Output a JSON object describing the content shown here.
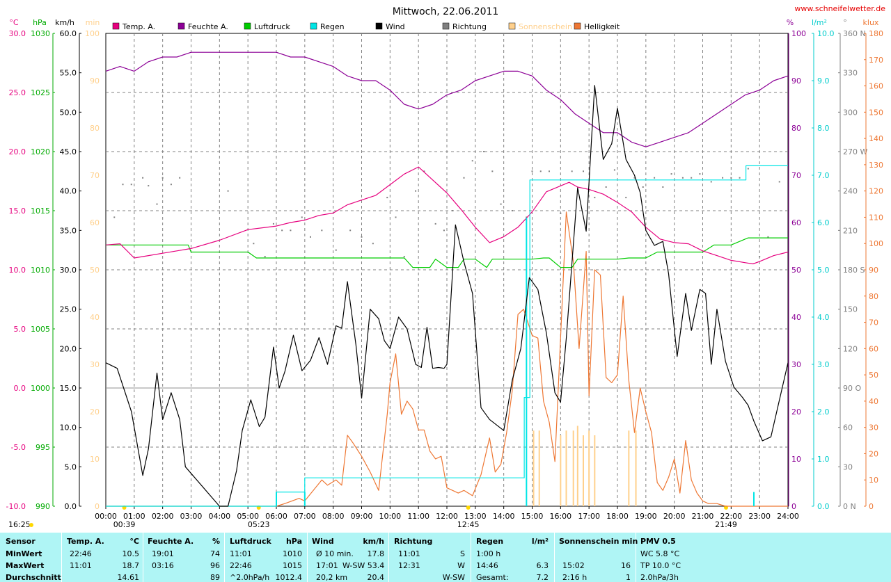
{
  "chart_data": {
    "type": "line",
    "title": "Mittwoch, 22.06.2011",
    "watermark": "www.schneifelwetter.de",
    "x_ticks": [
      "00:00",
      "01:00",
      "02:00",
      "03:00",
      "04:00",
      "05:00",
      "06:00",
      "07:00",
      "08:00",
      "09:00",
      "10:00",
      "11:00",
      "12:00",
      "13:00",
      "14:00",
      "15:00",
      "16:00",
      "17:00",
      "18:00",
      "19:00",
      "20:00",
      "21:00",
      "22:00",
      "23:00",
      "24:00"
    ],
    "x_range_hours": [
      0,
      24
    ],
    "sun_events": [
      "00:39",
      "05:23",
      "12:45",
      "21:49"
    ],
    "sun_event_hours": [
      0.65,
      5.38,
      12.75,
      21.82
    ],
    "bottom_left_time": "16:25",
    "legend": [
      {
        "name": "Temp. A.",
        "color": "#e6007e"
      },
      {
        "name": "Feuchte A.",
        "color": "#8c0096"
      },
      {
        "name": "Luftdruck",
        "color": "#00cc00"
      },
      {
        "name": "Regen",
        "color": "#00e5e5"
      },
      {
        "name": "Wind",
        "color": "#000000"
      },
      {
        "name": "Richtung",
        "color": "#808080"
      },
      {
        "name": "Sonnenschein",
        "color": "#ffd08c"
      },
      {
        "name": "Helligkeit",
        "color": "#ee7733"
      }
    ],
    "axes": {
      "temp": {
        "unit": "°C",
        "color": "#e6007e",
        "range": [
          -10,
          30
        ],
        "ticks": [
          "30.0",
          "25.0",
          "20.0",
          "15.0",
          "10.0",
          "5.0",
          "0.0",
          "-5.0",
          "-10.0"
        ]
      },
      "pressure": {
        "unit": "hPa",
        "color": "#00aa00",
        "range": [
          990,
          1030
        ],
        "ticks": [
          "1030",
          "1025",
          "1020",
          "1015",
          "1010",
          "1005",
          "1000",
          "995",
          "990"
        ]
      },
      "wind": {
        "unit": "km/h",
        "color": "#000000",
        "range": [
          0,
          60
        ],
        "ticks": [
          "60.0",
          "55.0",
          "50.0",
          "45.0",
          "40.0",
          "35.0",
          "30.0",
          "25.0",
          "20.0",
          "15.0",
          "10.0",
          "5.0",
          "0.0"
        ]
      },
      "sunshine": {
        "unit": "min",
        "color": "#ffd08c",
        "range": [
          0,
          100
        ],
        "ticks": [
          "100",
          "90",
          "80",
          "70",
          "60",
          "50",
          "40",
          "30",
          "20",
          "10",
          "0"
        ]
      },
      "humidity": {
        "unit": "%",
        "color": "#8c0096",
        "range": [
          0,
          100
        ],
        "ticks": [
          "100",
          "90",
          "80",
          "70",
          "60",
          "50",
          "40",
          "30",
          "20",
          "10",
          "0"
        ]
      },
      "rain": {
        "unit": "l/m²",
        "color": "#00cccc",
        "range": [
          0,
          10
        ],
        "ticks": [
          "10.0",
          "9.0",
          "8.0",
          "7.0",
          "6.0",
          "5.0",
          "4.0",
          "3.0",
          "2.0",
          "1.0",
          "0.0"
        ]
      },
      "direction": {
        "unit": "°",
        "color": "#808080",
        "range": [
          0,
          360
        ],
        "ticks": [
          "360 N",
          "330",
          "300",
          "270 W",
          "240",
          "210",
          "180 S",
          "150",
          "120",
          "90 O",
          "60",
          "30",
          "0 N"
        ]
      },
      "brightness": {
        "unit": "klux",
        "color": "#ee7733",
        "range": [
          0,
          180
        ],
        "ticks": [
          "180",
          "170",
          "160",
          "150",
          "140",
          "130",
          "120",
          "110",
          "100",
          "90",
          "80",
          "70",
          "60",
          "50",
          "40",
          "30",
          "20",
          "10",
          "0"
        ]
      }
    },
    "series": [
      {
        "name": "Temp. A.",
        "axis": "temp",
        "color": "#e6007e",
        "x": [
          0,
          0.5,
          1.0,
          1.5,
          2.0,
          2.5,
          3.0,
          4.0,
          5.0,
          6.0,
          6.5,
          7.0,
          7.5,
          8.0,
          8.5,
          9.0,
          9.5,
          10.0,
          10.5,
          11.0,
          11.5,
          12.0,
          12.5,
          13.0,
          13.5,
          14.0,
          14.5,
          15.0,
          15.5,
          16.0,
          16.3,
          16.6,
          17.0,
          17.5,
          18.0,
          18.5,
          19.0,
          19.5,
          20.0,
          20.5,
          21.0,
          21.5,
          22.0,
          22.5,
          22.77,
          23.0,
          23.5,
          24.0
        ],
        "y": [
          12.1,
          12.2,
          11.0,
          11.2,
          11.4,
          11.6,
          11.8,
          12.5,
          13.4,
          13.7,
          14.0,
          14.2,
          14.6,
          14.8,
          15.5,
          15.9,
          16.3,
          17.2,
          18.1,
          18.7,
          17.6,
          16.5,
          15.1,
          13.6,
          12.3,
          12.8,
          13.6,
          14.9,
          16.6,
          17.1,
          17.4,
          17.0,
          16.8,
          16.4,
          15.7,
          14.9,
          13.6,
          12.6,
          12.3,
          12.2,
          11.6,
          11.2,
          10.8,
          10.6,
          10.5,
          10.7,
          11.2,
          11.5
        ]
      },
      {
        "name": "Feuchte A.",
        "axis": "humidity",
        "color": "#8c0096",
        "x": [
          0,
          0.5,
          1.0,
          1.5,
          2.0,
          2.5,
          3.0,
          3.5,
          4.0,
          5.0,
          6.0,
          6.5,
          7.0,
          7.5,
          8.0,
          8.5,
          9.0,
          9.5,
          10.0,
          10.5,
          11.0,
          11.5,
          12.0,
          12.5,
          13.0,
          13.5,
          14.0,
          14.5,
          15.0,
          15.5,
          16.0,
          16.5,
          17.0,
          17.5,
          18.0,
          18.5,
          19.0,
          19.5,
          20.0,
          20.5,
          21.0,
          21.5,
          22.0,
          22.5,
          23.0,
          23.5,
          24.0
        ],
        "y": [
          92,
          93,
          92,
          94,
          95,
          95,
          96,
          96,
          96,
          96,
          96,
          95,
          95,
          94,
          93,
          91,
          90,
          90,
          88,
          85,
          84,
          85,
          87,
          88,
          90,
          91,
          92,
          92,
          91,
          88,
          86,
          83,
          81,
          79,
          79,
          77,
          76,
          77,
          78,
          79,
          81,
          83,
          85,
          87,
          88,
          90,
          91
        ]
      },
      {
        "name": "Luftdruck",
        "axis": "pressure",
        "color": "#00cc00",
        "x": [
          0,
          1.0,
          2.0,
          2.9,
          3.0,
          3.4,
          5.0,
          5.3,
          9.0,
          10.0,
          10.5,
          10.8,
          11.0,
          11.4,
          11.6,
          12.0,
          12.4,
          12.6,
          13.0,
          13.4,
          13.6,
          14.0,
          14.5,
          15.0,
          15.4,
          15.6,
          16.0,
          16.4,
          16.6,
          17.0,
          17.4,
          17.6,
          18.0,
          18.4,
          18.6,
          19.0,
          19.4,
          19.6,
          20.0,
          20.5,
          20.8,
          21.0,
          21.4,
          21.6,
          22.0,
          22.6,
          22.9,
          23.0,
          24.0
        ],
        "y": [
          1012.1,
          1012.1,
          1012.1,
          1012.1,
          1011.5,
          1011.5,
          1011.5,
          1011.0,
          1011.0,
          1011.0,
          1011.0,
          1010.2,
          1010.2,
          1010.2,
          1010.9,
          1010.2,
          1010.2,
          1010.9,
          1010.9,
          1010.2,
          1010.9,
          1010.9,
          1010.9,
          1010.9,
          1011.0,
          1011.0,
          1010.2,
          1010.2,
          1010.9,
          1010.9,
          1010.9,
          1010.9,
          1010.9,
          1011.0,
          1011.0,
          1011.0,
          1011.5,
          1011.5,
          1011.5,
          1011.5,
          1011.5,
          1011.5,
          1012.1,
          1012.1,
          1012.1,
          1012.7,
          1012.7,
          1012.7,
          1012.7
        ]
      },
      {
        "name": "Regen",
        "axis": "rain",
        "color": "#00e5e5",
        "cumulative": true,
        "x": [
          0,
          6.0,
          6.0,
          7.0,
          7.0,
          14.72,
          14.72,
          14.92,
          14.92,
          22.52,
          22.52,
          23.0,
          24.0
        ],
        "y": [
          0,
          0,
          0.3,
          0.3,
          0.6,
          0.6,
          2.3,
          2.3,
          6.9,
          6.9,
          7.2,
          7.2,
          7.2
        ],
        "hourly_bars": {
          "x": [
            6.0,
            7.0,
            14.8,
            22.8
          ],
          "y": [
            0.3,
            0.3,
            6.1,
            0.3
          ]
        }
      },
      {
        "name": "Wind",
        "axis": "wind",
        "color": "#000000",
        "x": [
          0,
          0.4,
          0.9,
          1.3,
          1.5,
          1.8,
          2.0,
          2.3,
          2.6,
          2.8,
          4.0,
          4.3,
          4.6,
          4.8,
          5.1,
          5.4,
          5.6,
          5.9,
          6.1,
          6.3,
          6.6,
          6.9,
          7.2,
          7.5,
          7.8,
          8.1,
          8.3,
          8.5,
          8.8,
          9.0,
          9.3,
          9.6,
          9.8,
          10.0,
          10.3,
          10.6,
          10.9,
          11.1,
          11.3,
          11.5,
          11.7,
          11.9,
          12.0,
          12.3,
          12.6,
          12.9,
          13.2,
          13.5,
          14.0,
          14.3,
          14.6,
          14.9,
          15.2,
          15.5,
          15.8,
          16.0,
          16.2,
          16.6,
          16.9,
          17.2,
          17.5,
          17.8,
          18.0,
          18.3,
          18.6,
          18.8,
          19.0,
          19.3,
          19.6,
          19.8,
          20.1,
          20.4,
          20.6,
          20.9,
          21.1,
          21.3,
          21.5,
          21.8,
          22.1,
          22.4,
          22.6,
          22.8,
          23.1,
          23.4,
          24.0
        ],
        "y": [
          18.2,
          17.5,
          12.0,
          3.9,
          7.3,
          16.9,
          11.0,
          14.4,
          11.0,
          5.0,
          0,
          0,
          4.5,
          9.6,
          13.5,
          10.1,
          11.3,
          20.2,
          15.0,
          17.1,
          21.7,
          17.2,
          18.5,
          21.4,
          18.0,
          22.9,
          22.6,
          28.5,
          20.5,
          13.7,
          25.0,
          23.8,
          21.0,
          20.0,
          24.0,
          22.5,
          18.0,
          17.6,
          22.7,
          17.5,
          17.6,
          17.5,
          18.0,
          35.7,
          31.0,
          27.0,
          12.5,
          11.0,
          9.6,
          16.0,
          20.0,
          29.0,
          27.5,
          22.0,
          14.4,
          13.2,
          21.3,
          40.4,
          34.9,
          53.4,
          44.0,
          46.0,
          50.5,
          44.0,
          42.0,
          39.8,
          35.0,
          33.1,
          33.6,
          29.5,
          19.0,
          27.0,
          22.3,
          27.5,
          27.0,
          18.0,
          25.0,
          18.4,
          15.1,
          13.8,
          12.8,
          10.8,
          8.3,
          8.8,
          18.2
        ]
      },
      {
        "name": "Richtung",
        "axis": "direction",
        "color": "#808080",
        "style": "dots",
        "x": [
          0.3,
          0.6,
          0.9,
          1.3,
          1.5,
          1.8,
          2.0,
          2.3,
          2.6,
          4.3,
          5.2,
          5.6,
          5.9,
          6.2,
          6.5,
          6.9,
          7.2,
          7.6,
          8.1,
          8.6,
          9.0,
          9.4,
          9.9,
          10.2,
          10.5,
          10.9,
          11.2,
          11.6,
          11.9,
          12.2,
          12.6,
          12.9,
          13.3,
          13.6,
          13.9,
          14.3,
          14.8,
          15.0,
          15.3,
          15.6,
          16.0,
          16.4,
          16.8,
          17.2,
          17.6,
          17.9,
          18.3,
          18.6,
          18.9,
          19.3,
          19.6,
          19.9,
          20.3,
          20.6,
          20.9,
          21.3,
          21.7,
          22.0,
          22.3,
          22.6,
          23.0,
          23.3,
          23.7
        ],
        "y": [
          220,
          245,
          245,
          250,
          244,
          230,
          250,
          245,
          250,
          240,
          200,
          190,
          215,
          210,
          210,
          220,
          205,
          210,
          195,
          210,
          205,
          200,
          235,
          220,
          190,
          240,
          255,
          215,
          210,
          225,
          250,
          263,
          270,
          255,
          230,
          225,
          220,
          255,
          255,
          255,
          223,
          255,
          255,
          235,
          243,
          256,
          235,
          250,
          243,
          250,
          243,
          253,
          250,
          250,
          253,
          247,
          250,
          250,
          250,
          257,
          190,
          205,
          247
        ]
      },
      {
        "name": "Sonnenschein",
        "axis": "sunshine",
        "color": "#ffd08c",
        "style": "bars",
        "x": [
          15.05,
          15.25,
          16.0,
          16.2,
          16.45,
          16.6,
          16.8,
          17.0,
          17.2,
          18.4,
          18.65
        ],
        "y": [
          16,
          16,
          15,
          16,
          16,
          17,
          15,
          16,
          15,
          16,
          16
        ]
      },
      {
        "name": "Helligkeit",
        "axis": "brightness",
        "color": "#ee7733",
        "x": [
          0,
          6.0,
          6.3,
          6.8,
          7.0,
          7.3,
          7.6,
          7.8,
          8.1,
          8.3,
          8.5,
          8.7,
          9.0,
          9.3,
          9.6,
          9.9,
          10.0,
          10.2,
          10.4,
          10.6,
          10.8,
          11.0,
          11.2,
          11.4,
          11.6,
          11.8,
          12.0,
          12.2,
          12.4,
          12.6,
          12.9,
          13.2,
          13.5,
          13.7,
          13.9,
          14.1,
          14.3,
          14.5,
          14.7,
          15.0,
          15.2,
          15.4,
          15.6,
          15.8,
          16.0,
          16.2,
          16.45,
          16.65,
          16.9,
          17.0,
          17.2,
          17.4,
          17.6,
          17.8,
          18.0,
          18.2,
          18.4,
          18.6,
          18.8,
          19.0,
          19.2,
          19.4,
          19.6,
          19.8,
          20.0,
          20.2,
          20.4,
          20.6,
          20.8,
          21.0,
          21.2,
          21.5,
          21.8,
          22.0,
          22.3,
          22.6,
          22.9,
          24.0
        ],
        "y": [
          0,
          0,
          1,
          3,
          2,
          6,
          10,
          8,
          10,
          8,
          27,
          24,
          19,
          13,
          6,
          35,
          47,
          58,
          35,
          40,
          37,
          29,
          29,
          21,
          18,
          19,
          7,
          6,
          5,
          6,
          4,
          12,
          26,
          13,
          16,
          28,
          44,
          73,
          75,
          65,
          64,
          40,
          32,
          17,
          64,
          112,
          93,
          60,
          97,
          42,
          90,
          88,
          49,
          47,
          50,
          80,
          48,
          28,
          45,
          36,
          28,
          9,
          6,
          11,
          18,
          5,
          25,
          10,
          5,
          2,
          1,
          1,
          0,
          0,
          0,
          0,
          0,
          0
        ]
      }
    ]
  },
  "stats": {
    "header": [
      "Sensor",
      "Temp. A.",
      "°C",
      "Feuchte A.",
      "%",
      "Luftdruck",
      "hPa",
      "Wind",
      "km/h",
      "Richtung",
      "Regen",
      "l/m²",
      "Sonnenschein min",
      "PMV 0.5"
    ],
    "row_labels": [
      "MinWert",
      "MaxWert",
      "Durchschnitt"
    ],
    "temp": [
      [
        "22:46",
        "10.5"
      ],
      [
        "11:01",
        "18.7"
      ],
      [
        "",
        "14.61"
      ]
    ],
    "humidity": [
      [
        "19:01",
        "74"
      ],
      [
        "03:16",
        "96"
      ],
      [
        "",
        "89"
      ]
    ],
    "pressure": [
      [
        "11:01",
        "1010"
      ],
      [
        "22:46",
        "1015"
      ],
      [
        "^2.0hPa/h",
        "1012.4"
      ]
    ],
    "wind": [
      [
        "Ø 10 min.",
        "17.8"
      ],
      [
        "17:01",
        "W-SW 53.4"
      ],
      [
        "20,2 km",
        "20.4"
      ]
    ],
    "direction": [
      [
        "11:01",
        "S"
      ],
      [
        "12:31",
        "W"
      ],
      [
        "",
        "W-SW"
      ]
    ],
    "rain": [
      [
        "1:00 h",
        ""
      ],
      [
        "14:46",
        "6.3"
      ],
      [
        "Gesamt:",
        "7.2"
      ]
    ],
    "sunshine": [
      [
        "",
        ""
      ],
      [
        "15:02",
        "16"
      ],
      [
        "2:16 h",
        "1"
      ]
    ],
    "pmv": [
      "WC 5.8 °C",
      "TP 10.0 °C",
      "2.0hPa/3h"
    ]
  }
}
